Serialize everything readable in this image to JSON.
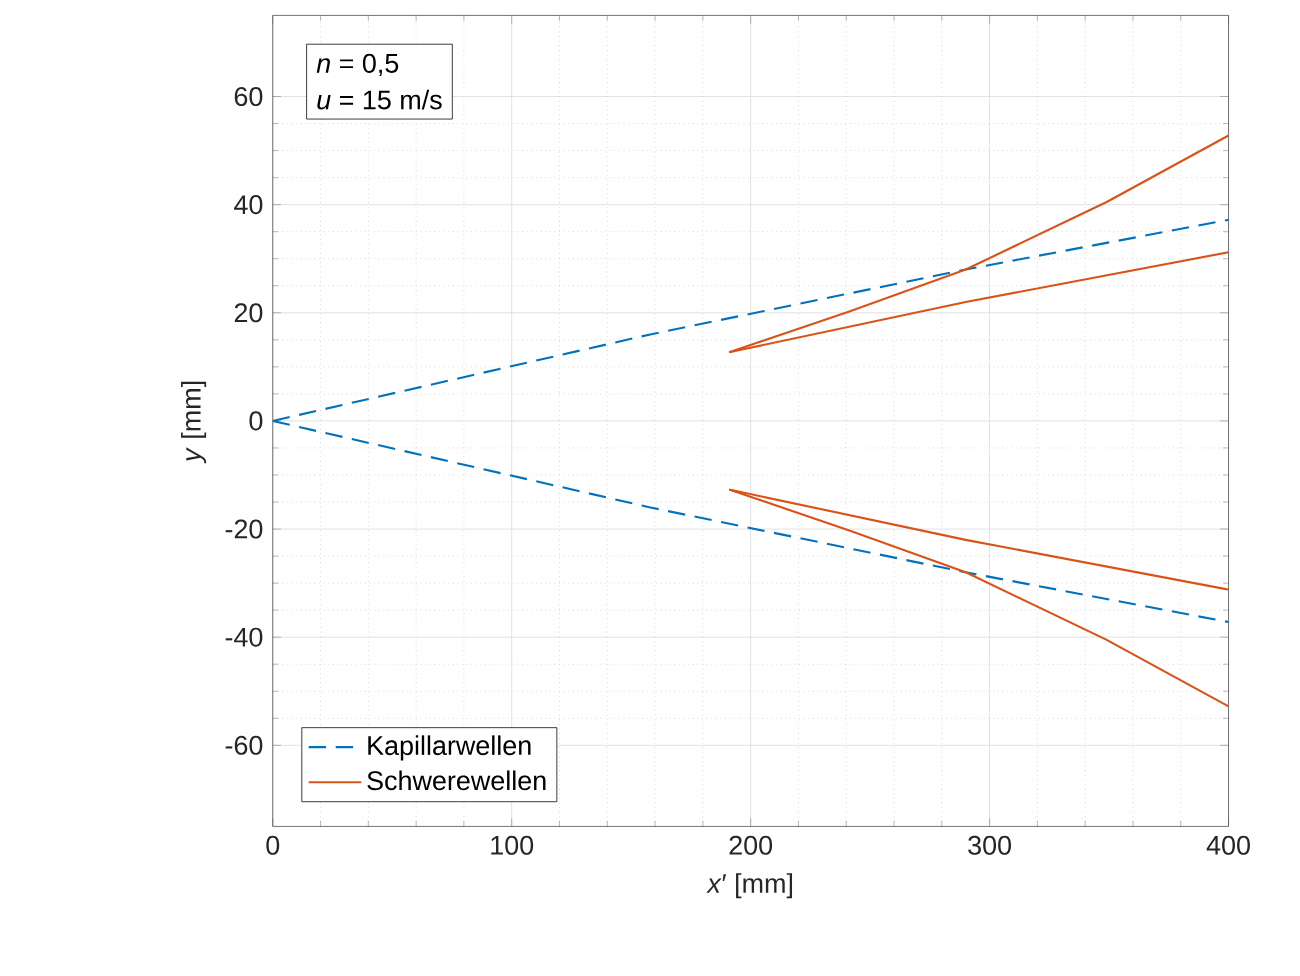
{
  "chart_data": {
    "type": "line",
    "xlabel": "*x*′ [mm]",
    "ylabel": "*y* [mm]",
    "annotations": [
      "*n* = 0,5",
      "*u* = 15 m/s"
    ],
    "xlim": [
      0,
      400
    ],
    "ylim": [
      -75,
      75
    ],
    "xticks": [
      0,
      100,
      200,
      300,
      400
    ],
    "yticks": [
      -60,
      -40,
      -20,
      0,
      20,
      40,
      60
    ],
    "grid": true,
    "legend": "bottom left",
    "marker": "none",
    "series": [
      {
        "name": "Kapillarwellen",
        "color": "#0072bd",
        "line_style": "dashed",
        "x": [
          0,
          158,
          290,
          400
        ],
        "values": [
          0,
          16,
          28,
          37.2
        ]
      },
      {
        "color": "#0072bd",
        "line_style": "dashed",
        "x": [
          0,
          158,
          290,
          400
        ],
        "values": [
          0,
          -16,
          -28,
          -37.2
        ]
      },
      {
        "name": "Schwerewellen",
        "color": "#d95319",
        "line_style": "solid",
        "x": [
          191,
          241,
          290,
          349,
          400
        ],
        "values": [
          12.7,
          20.2,
          28,
          40.5,
          52.8
        ]
      },
      {
        "color": "#d95319",
        "line_style": "solid",
        "x": [
          191,
          290,
          400
        ],
        "values": [
          12.7,
          22,
          31.2
        ]
      },
      {
        "color": "#d95319",
        "line_style": "solid",
        "x": [
          191,
          241,
          290,
          349,
          400
        ],
        "values": [
          -12.7,
          -20.2,
          -28,
          -40.5,
          -52.8
        ]
      },
      {
        "color": "#d95319",
        "line_style": "solid",
        "x": [
          191,
          290,
          400
        ],
        "values": [
          -12.7,
          -22,
          -31.2
        ]
      }
    ]
  }
}
